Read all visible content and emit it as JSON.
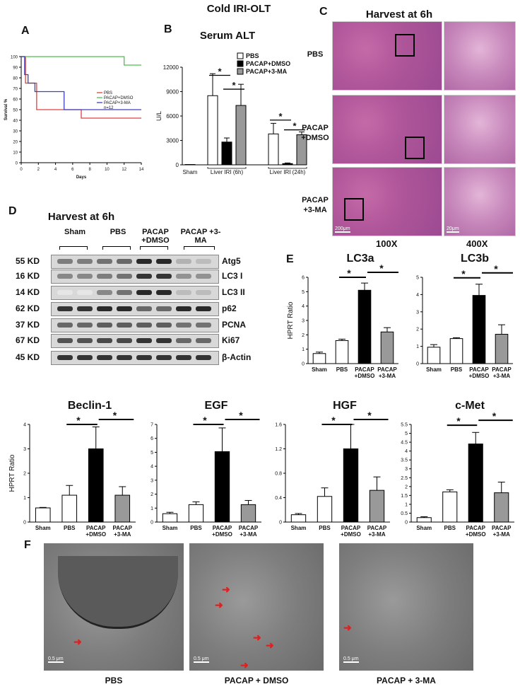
{
  "title": "Cold IRI-OLT",
  "panels": {
    "a": {
      "label": "A"
    },
    "b": {
      "label": "B",
      "title": "Serum ALT"
    },
    "c": {
      "label": "C",
      "title": "Harvest at 6h",
      "rows": [
        "PBS",
        "PACAP +DMSO",
        "PACAP +3-MA"
      ],
      "mag_low": "100X",
      "mag_high": "400X",
      "scale_low": "200μm",
      "scale_high": "20μm"
    },
    "d": {
      "label": "D",
      "title": "Harvest at 6h",
      "groups": [
        "Sham",
        "PBS",
        "PACAP +DMSO",
        "PACAP +3-MA"
      ],
      "blots": [
        {
          "kd": "55 KD",
          "name": "Atg5"
        },
        {
          "kd": "16 KD",
          "name": "LC3 I"
        },
        {
          "kd": "14 KD",
          "name": "LC3 II"
        },
        {
          "kd": "62 KD",
          "name": "p62"
        },
        {
          "kd": "37 KD",
          "name": "PCNA"
        },
        {
          "kd": "67 KD",
          "name": "Ki67"
        },
        {
          "kd": "45 KD",
          "name": "β-Actin"
        }
      ]
    },
    "e": {
      "label": "E"
    },
    "f": {
      "label": "F",
      "captions": [
        "PBS",
        "PACAP + DMSO",
        "PACAP + 3-MA"
      ],
      "scale": "0.5 μm"
    }
  },
  "chart_data": [
    {
      "id": "survival",
      "type": "line",
      "ylabel": "Survival %",
      "xlabel": "Days",
      "xlim": [
        0,
        14
      ],
      "ylim": [
        0,
        100
      ],
      "xticks": [
        0,
        2,
        4,
        6,
        8,
        10,
        12,
        14
      ],
      "yticks": [
        0,
        10,
        20,
        30,
        40,
        50,
        60,
        70,
        80,
        90,
        100
      ],
      "legend_note": "n=12",
      "series": [
        {
          "name": "PBS",
          "color": "#e04040",
          "x": [
            0,
            0.5,
            0.5,
            1.8,
            1.8,
            7,
            7,
            14
          ],
          "y": [
            100,
            100,
            75,
            75,
            50,
            50,
            42,
            42
          ]
        },
        {
          "name": "PACAP+DMSO",
          "color": "#4cc24c",
          "x": [
            0,
            12,
            12,
            14
          ],
          "y": [
            100,
            100,
            92,
            92
          ]
        },
        {
          "name": "PACAP+3-MA",
          "color": "#4040c0",
          "x": [
            0,
            0.4,
            0.4,
            0.8,
            0.8,
            1.6,
            1.6,
            5,
            5,
            14
          ],
          "y": [
            100,
            100,
            83,
            83,
            75,
            75,
            67,
            67,
            50,
            50
          ]
        }
      ]
    },
    {
      "id": "alt",
      "type": "bar",
      "title": "Serum ALT",
      "ylabel": "U/L",
      "ylim": [
        0,
        12000
      ],
      "yticks": [
        0,
        3000,
        6000,
        9000,
        12000
      ],
      "legend": [
        {
          "name": "PBS",
          "fill": "#ffffff"
        },
        {
          "name": "PACAP+DMSO",
          "fill": "#000000"
        },
        {
          "name": "PACAP+3-MA",
          "fill": "#999999"
        }
      ],
      "groups": [
        {
          "label": "Sham",
          "bars": [
            {
              "v": 40,
              "e": 0,
              "fill": "#ffffff"
            }
          ]
        },
        {
          "label": "Liver IRI (6h)",
          "bars": [
            {
              "v": 8500,
              "e": 2700,
              "fill": "#ffffff"
            },
            {
              "v": 2800,
              "e": 500,
              "fill": "#000000"
            },
            {
              "v": 7300,
              "e": 2600,
              "fill": "#999999"
            }
          ]
        },
        {
          "label": "Liver IRI (24h)",
          "bars": [
            {
              "v": 3800,
              "e": 1300,
              "fill": "#ffffff"
            },
            {
              "v": 150,
              "e": 80,
              "fill": "#000000"
            },
            {
              "v": 3700,
              "e": 350,
              "fill": "#999999"
            }
          ]
        }
      ]
    },
    {
      "id": "lc3a",
      "type": "bar",
      "title": "LC3a",
      "ylabel": "HPRT Ratio",
      "ylim": [
        0,
        6
      ],
      "yticks": [
        0,
        1,
        2,
        3,
        4,
        5,
        6
      ],
      "categories": [
        "Sham",
        "PBS",
        "PACAP +DMSO",
        "PACAP +3-MA"
      ],
      "values": [
        0.7,
        1.6,
        5.1,
        2.2
      ],
      "errors": [
        0.1,
        0.1,
        0.5,
        0.3
      ]
    },
    {
      "id": "lc3b",
      "type": "bar",
      "title": "LC3b",
      "ylabel": "",
      "ylim": [
        0,
        5
      ],
      "yticks": [
        0,
        1,
        2,
        3,
        4,
        5
      ],
      "categories": [
        "Sham",
        "PBS",
        "PACAP +DMSO",
        "PACAP +3-MA"
      ],
      "values": [
        0.95,
        1.45,
        3.95,
        1.7
      ],
      "errors": [
        0.15,
        0.05,
        0.65,
        0.55
      ]
    },
    {
      "id": "beclin",
      "type": "bar",
      "title": "Beclin-1",
      "ylabel": "HPRT Ratio",
      "ylim": [
        0,
        4
      ],
      "yticks": [
        0,
        1,
        2,
        3,
        4
      ],
      "categories": [
        "Sham",
        "PBS",
        "PACAP +DMSO",
        "PACAP +3-MA"
      ],
      "values": [
        0.58,
        1.1,
        3.0,
        1.1
      ],
      "errors": [
        0.02,
        0.4,
        0.9,
        0.35
      ]
    },
    {
      "id": "egf",
      "type": "bar",
      "title": "EGF",
      "ylabel": "",
      "ylim": [
        0,
        7
      ],
      "yticks": [
        0,
        1,
        2,
        3,
        4,
        5,
        6,
        7
      ],
      "categories": [
        "Sham",
        "PBS",
        "PACAP +DMSO",
        "PACAP +3-MA"
      ],
      "values": [
        0.6,
        1.25,
        5.05,
        1.25
      ],
      "errors": [
        0.1,
        0.2,
        1.7,
        0.3
      ]
    },
    {
      "id": "hgf",
      "type": "bar",
      "title": "HGF",
      "ylabel": "",
      "ylim": [
        0,
        1.6
      ],
      "yticks": [
        0,
        0.4,
        0.8,
        1.2,
        1.6
      ],
      "categories": [
        "Sham",
        "PBS",
        "PACAP +DMSO",
        "PACAP +3-MA"
      ],
      "values": [
        0.12,
        0.42,
        1.2,
        0.52
      ],
      "errors": [
        0.02,
        0.14,
        0.4,
        0.22
      ]
    },
    {
      "id": "cmet",
      "type": "bar",
      "title": "c-Met",
      "ylabel": "",
      "ylim": [
        0,
        5.5
      ],
      "yticks": [
        0,
        0.5,
        1,
        1.5,
        2,
        2.5,
        3,
        3.5,
        4,
        4.5,
        5,
        5.5
      ],
      "categories": [
        "Sham",
        "PBS",
        "PACAP +DMSO",
        "PACAP +3-MA"
      ],
      "values": [
        0.25,
        1.7,
        4.4,
        1.65
      ],
      "errors": [
        0.05,
        0.12,
        0.65,
        0.6
      ]
    }
  ]
}
